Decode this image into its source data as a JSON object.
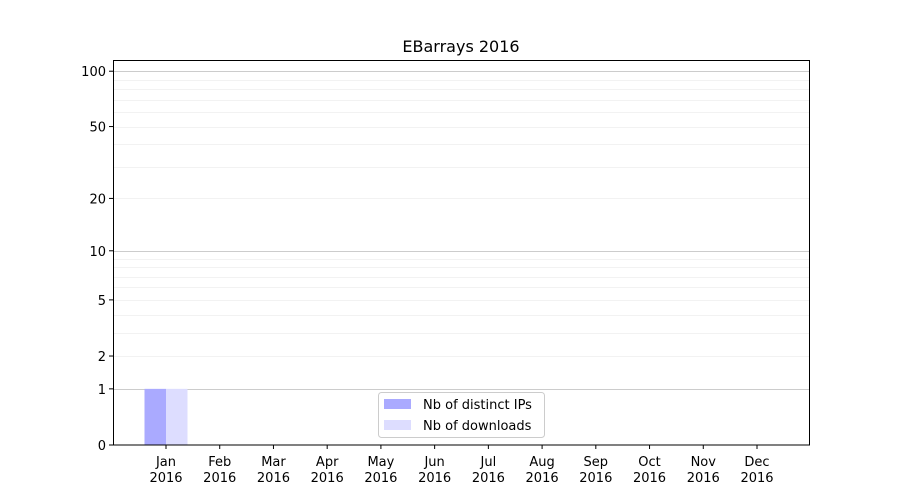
{
  "chart_data": {
    "type": "bar",
    "title": "EBarrays 2016",
    "xlabel": "",
    "ylabel": "",
    "yscale": "log(1+y)",
    "ylim": [
      0,
      115
    ],
    "yticks": [
      0,
      1,
      2,
      5,
      10,
      20,
      50,
      100
    ],
    "grid": true,
    "legend_placement": "lower-center",
    "categories": [
      "Jan\n2016",
      "Feb\n2016",
      "Mar\n2016",
      "Apr\n2016",
      "May\n2016",
      "Jun\n2016",
      "Jul\n2016",
      "Aug\n2016",
      "Sep\n2016",
      "Oct\n2016",
      "Nov\n2016",
      "Dec\n2016"
    ],
    "series": [
      {
        "name": "Nb of distinct IPs",
        "color": "#aaaaff",
        "values": [
          1,
          0,
          0,
          0,
          0,
          0,
          0,
          0,
          0,
          0,
          0,
          0
        ]
      },
      {
        "name": "Nb of downloads",
        "color": "#ddddff",
        "values": [
          1,
          0,
          0,
          0,
          0,
          0,
          0,
          0,
          0,
          0,
          0,
          0
        ]
      }
    ]
  }
}
